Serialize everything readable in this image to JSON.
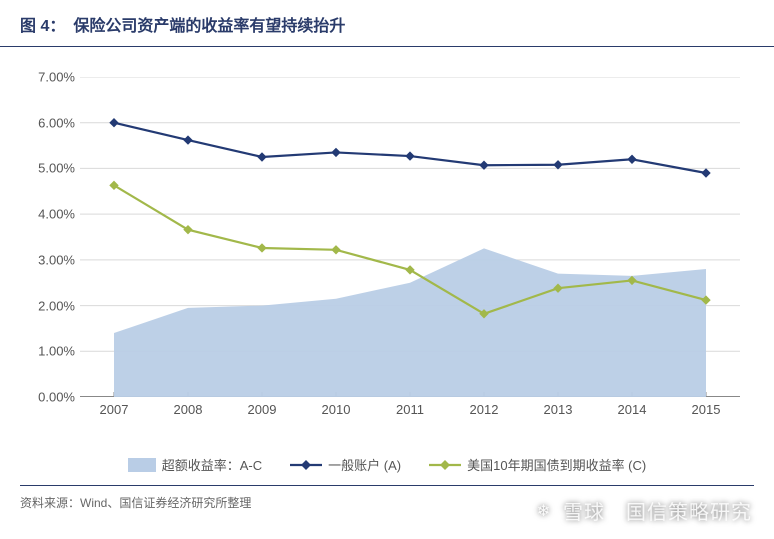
{
  "header": {
    "figure_num": "图 4：",
    "title": "保险公司资产端的收益率有望持续抬升"
  },
  "chart": {
    "type": "line-area-combo",
    "background_color": "#ffffff",
    "grid_color": "#d9d9d9",
    "axis_color": "#888888",
    "tick_font_size": 13,
    "tick_color": "#555555",
    "y": {
      "min": 0.0,
      "max": 7.0,
      "step": 1.0,
      "format": "0.00%",
      "labels": [
        "0.00%",
        "1.00%",
        "2.00%",
        "3.00%",
        "4.00%",
        "5.00%",
        "6.00%",
        "7.00%"
      ]
    },
    "x": {
      "labels": [
        "2007",
        "2008",
        "2009",
        "2010",
        "2011",
        "2012",
        "2013",
        "2014",
        "2015"
      ]
    },
    "series": {
      "excess": {
        "label": "超额收益率：A-C",
        "type": "area",
        "color": "#b9cde6",
        "opacity": 0.95,
        "values": [
          1.4,
          1.95,
          2.0,
          2.15,
          2.5,
          3.25,
          2.7,
          2.65,
          2.8
        ]
      },
      "general": {
        "label": "一般账户 (A)",
        "type": "line",
        "color": "#233a74",
        "line_width": 2.2,
        "marker": "diamond",
        "marker_size": 8,
        "values": [
          6.0,
          5.62,
          5.25,
          5.35,
          5.27,
          5.07,
          5.08,
          5.2,
          4.9
        ]
      },
      "us10y": {
        "label": "美国10年期国债到期收益率 (C)",
        "type": "line",
        "color": "#a2b84a",
        "line_width": 2.2,
        "marker": "diamond",
        "marker_size": 8,
        "values": [
          4.63,
          3.66,
          3.26,
          3.22,
          2.78,
          1.82,
          2.38,
          2.55,
          2.12
        ]
      }
    }
  },
  "legend": {
    "items": [
      {
        "key": "excess",
        "label": "超额收益率：A-C"
      },
      {
        "key": "general",
        "label": "一般账户 (A)"
      },
      {
        "key": "us10y",
        "label": "美国10年期国债到期收益率 (C)"
      }
    ]
  },
  "source": "资料来源：Wind、国信证券经济研究所整理",
  "watermark": {
    "left": "雪球",
    "right": "国信策略研究"
  }
}
